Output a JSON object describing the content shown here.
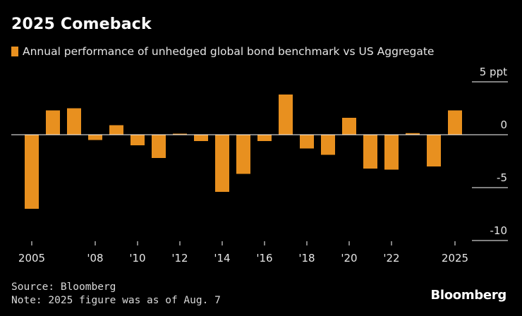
{
  "header": {
    "title": "2025 Comeback",
    "legend_label": "Annual performance of unhedged global bond benchmark vs US Aggregate"
  },
  "footer": {
    "source": "Source: Bloomberg",
    "note": "Note: 2025 figure was as of Aug. 7",
    "brand": "Bloomberg"
  },
  "colors": {
    "bar": "#e8901f",
    "background": "#000000",
    "axis": "#ffffff"
  },
  "chart_data": {
    "type": "bar",
    "title": "2025 Comeback",
    "xlabel": "",
    "ylabel": "",
    "ylim": [
      -10,
      5
    ],
    "grid": false,
    "legend": "top-left",
    "series": [
      {
        "name": "Annual performance of unhedged global bond benchmark vs US Aggregate",
        "x": [
          2005,
          2006,
          2007,
          2008,
          2009,
          2010,
          2011,
          2012,
          2013,
          2014,
          2015,
          2016,
          2017,
          2018,
          2019,
          2020,
          2021,
          2022,
          2023,
          2024,
          2025
        ],
        "values": [
          -7.0,
          2.3,
          2.5,
          -0.5,
          0.9,
          -1.0,
          -2.2,
          0.1,
          -0.6,
          -5.4,
          -3.7,
          -0.6,
          3.8,
          -1.3,
          -1.9,
          1.6,
          -3.2,
          -3.3,
          0.15,
          -3.0,
          2.3
        ]
      }
    ],
    "x_ticks": [
      {
        "x": 2005,
        "label": "2005"
      },
      {
        "x": 2008,
        "label": "'08"
      },
      {
        "x": 2010,
        "label": "'10"
      },
      {
        "x": 2012,
        "label": "'12"
      },
      {
        "x": 2014,
        "label": "'14"
      },
      {
        "x": 2016,
        "label": "'16"
      },
      {
        "x": 2018,
        "label": "'18"
      },
      {
        "x": 2020,
        "label": "'20"
      },
      {
        "x": 2022,
        "label": "'22"
      },
      {
        "x": 2025,
        "label": "2025"
      }
    ],
    "y_ticks": [
      {
        "value": 5,
        "label": "5 ppt"
      },
      {
        "value": 0,
        "label": "0"
      },
      {
        "value": -5,
        "label": "-5"
      },
      {
        "value": -10,
        "label": "-10"
      }
    ]
  }
}
